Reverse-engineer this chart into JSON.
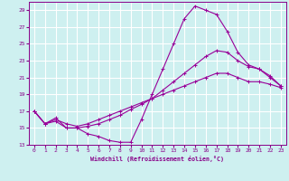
{
  "title": "Windchill (Refroidissement éolien,°C)",
  "background_color": "#cef0f0",
  "grid_color": "#ffffff",
  "line_color": "#990099",
  "xlim": [
    -0.5,
    23.5
  ],
  "ylim": [
    13,
    30
  ],
  "yticks": [
    13,
    15,
    17,
    19,
    21,
    23,
    25,
    27,
    29
  ],
  "xticks": [
    0,
    1,
    2,
    3,
    4,
    5,
    6,
    7,
    8,
    9,
    10,
    11,
    12,
    13,
    14,
    15,
    16,
    17,
    18,
    19,
    20,
    21,
    22,
    23
  ],
  "curve1_x": [
    0,
    1,
    2,
    3,
    4,
    5,
    6,
    7,
    8,
    9,
    10,
    11,
    12,
    13,
    14,
    15,
    16,
    17,
    18,
    19,
    20,
    21,
    22,
    23
  ],
  "curve1_y": [
    17.0,
    15.5,
    15.8,
    15.0,
    15.0,
    14.3,
    14.0,
    13.5,
    13.3,
    13.3,
    16.0,
    19.0,
    22.0,
    25.0,
    28.0,
    29.5,
    29.0,
    28.5,
    26.5,
    24.0,
    22.5,
    22.0,
    21.0,
    20.0
  ],
  "curve2_x": [
    0,
    1,
    2,
    3,
    4,
    5,
    6,
    7,
    8,
    9,
    10,
    11,
    12,
    13,
    14,
    15,
    16,
    17,
    18,
    19,
    20,
    21,
    22,
    23
  ],
  "curve2_y": [
    17.0,
    15.5,
    16.2,
    15.0,
    15.0,
    15.2,
    15.5,
    16.0,
    16.5,
    17.2,
    17.8,
    18.5,
    19.5,
    20.5,
    21.5,
    22.5,
    23.5,
    24.2,
    24.0,
    23.0,
    22.3,
    22.0,
    21.2,
    20.0
  ],
  "curve3_x": [
    0,
    1,
    2,
    3,
    4,
    5,
    6,
    7,
    8,
    9,
    10,
    11,
    12,
    13,
    14,
    15,
    16,
    17,
    18,
    19,
    20,
    21,
    22,
    23
  ],
  "curve3_y": [
    17.0,
    15.5,
    16.0,
    15.5,
    15.2,
    15.5,
    16.0,
    16.5,
    17.0,
    17.5,
    18.0,
    18.5,
    19.0,
    19.5,
    20.0,
    20.5,
    21.0,
    21.5,
    21.5,
    21.0,
    20.5,
    20.5,
    20.2,
    19.8
  ]
}
